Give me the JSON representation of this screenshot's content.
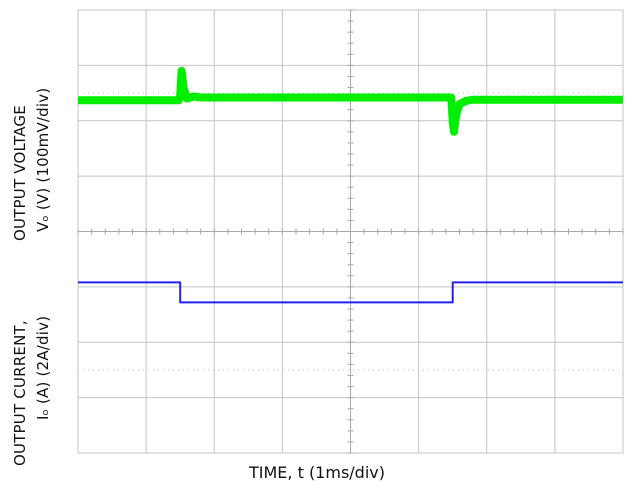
{
  "chart_data": {
    "type": "line",
    "title": "",
    "xlabel": "TIME, t (1ms/div)",
    "grid": true,
    "x_divisions": 8,
    "y_divisions": 8,
    "xlim_div": [
      0,
      8
    ],
    "series": [
      {
        "channel": "output-voltage",
        "color": "#00ee00",
        "ylabel": [
          "OUTPUT VOLTAGE",
          "Vₒ (V) (100mV/div)"
        ],
        "scale": "100mV/div",
        "x_div": [
          0,
          1.48,
          1.5,
          1.52,
          1.55,
          1.6,
          1.7,
          1.8,
          5.48,
          5.5,
          5.52,
          5.55,
          5.6,
          5.7,
          5.8,
          8
        ],
        "y_div": [
          6.37,
          6.37,
          6.45,
          6.9,
          6.6,
          6.4,
          6.44,
          6.42,
          6.42,
          6.0,
          5.8,
          6.1,
          6.3,
          6.36,
          6.38,
          6.38
        ]
      },
      {
        "channel": "output-current",
        "color": "#2222ee",
        "ylabel": [
          "OUTPUT CURRENT,",
          "Iₒ (A) (2A/div)"
        ],
        "scale": "2A/div",
        "x_div": [
          0,
          1.5,
          1.5,
          5.5,
          5.5,
          8
        ],
        "y_div": [
          3.08,
          3.08,
          2.72,
          2.72,
          3.08,
          3.08
        ]
      }
    ]
  }
}
